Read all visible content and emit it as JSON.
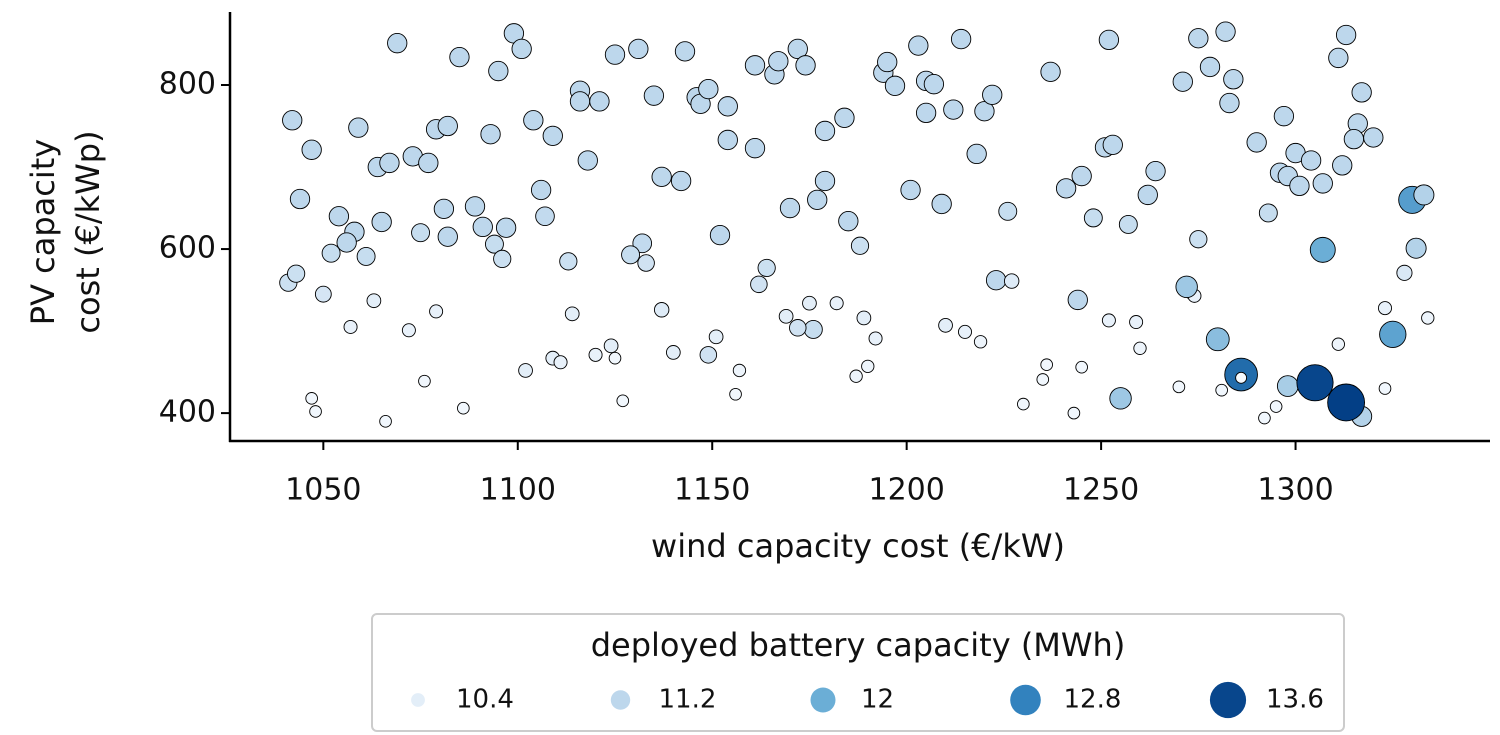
{
  "chart_data": {
    "type": "scatter",
    "xlabel": "wind capacity cost (€/kW)",
    "ylabel": [
      "PV capacity",
      "cost (€/kWp)"
    ],
    "xlim": [
      1026,
      1350
    ],
    "ylim": [
      366,
      889
    ],
    "xticks": [
      1050,
      1100,
      1150,
      1200,
      1250,
      1300
    ],
    "yticks": [
      400,
      600,
      800
    ],
    "grid": false,
    "x": [
      1042,
      1047,
      1044,
      1054,
      1058,
      1056,
      1052,
      1061,
      1041,
      1043,
      1050,
      1069,
      1059,
      1064,
      1067,
      1073,
      1077,
      1065,
      1075,
      1079,
      1082,
      1081,
      1082,
      1085,
      1093,
      1095,
      1089,
      1091,
      1094,
      1097,
      1096,
      1099,
      1101,
      1104,
      1109,
      1106,
      1107,
      1113,
      1116,
      1116,
      1121,
      1118,
      1125,
      1131,
      1135,
      1143,
      1137,
      1142,
      1132,
      1129,
      1133,
      1146,
      1147,
      1149,
      1154,
      1154,
      1161,
      1152,
      1161,
      1166,
      1167,
      1172,
      1174,
      1164,
      1162,
      1170,
      1179,
      1184,
      1179,
      1177,
      1185,
      1188,
      1176,
      1194,
      1195,
      1197,
      1203,
      1205,
      1207,
      1205,
      1201,
      1209,
      1214,
      1212,
      1220,
      1222,
      1218,
      1226,
      1223,
      1237,
      1241,
      1245,
      1248,
      1244,
      1251,
      1253,
      1252,
      1257,
      1262,
      1264,
      1271,
      1275,
      1282,
      1278,
      1284,
      1283,
      1275,
      1290,
      1293,
      1297,
      1296,
      1298,
      1300,
      1301,
      1304,
      1307,
      1311,
      1312,
      1313,
      1316,
      1315,
      1317,
      1320,
      1047,
      1048,
      1066,
      1076,
      1086,
      1057,
      1063,
      1072,
      1079,
      1102,
      1109,
      1111,
      1114,
      1120,
      1124,
      1125,
      1127,
      1137,
      1140,
      1149,
      1151,
      1157,
      1156,
      1169,
      1172,
      1175,
      1182,
      1187,
      1189,
      1190,
      1192,
      1210,
      1215,
      1219,
      1227,
      1230,
      1235,
      1236,
      1243,
      1245,
      1252,
      1259,
      1260,
      1270,
      1273,
      1274,
      1281,
      1292,
      1295,
      1311,
      1323,
      1330,
      1333,
      1331,
      1328,
      1323,
      1334,
      1325,
      1307,
      1280,
      1272,
      1255,
      1298,
      1317,
      1286,
      1286,
      1305,
      1313
    ],
    "y": [
      757,
      721,
      661,
      640,
      621,
      608,
      595,
      591,
      559,
      570,
      545,
      851,
      748,
      700,
      705,
      713,
      705,
      633,
      620,
      746,
      750,
      649,
      615,
      834,
      740,
      817,
      652,
      627,
      606,
      626,
      588,
      863,
      844,
      757,
      738,
      672,
      640,
      585,
      793,
      780,
      780,
      708,
      837,
      844,
      787,
      841,
      688,
      683,
      607,
      593,
      583,
      785,
      777,
      795,
      733,
      774,
      723,
      617,
      824,
      813,
      829,
      844,
      824,
      577,
      557,
      650,
      744,
      760,
      683,
      660,
      634,
      604,
      502,
      815,
      828,
      799,
      848,
      805,
      801,
      766,
      672,
      655,
      856,
      770,
      768,
      788,
      716,
      646,
      562,
      816,
      674,
      689,
      638,
      538,
      724,
      727,
      855,
      630,
      666,
      695,
      804,
      857,
      865,
      822,
      807,
      778,
      612,
      730,
      644,
      762,
      693,
      689,
      717,
      677,
      708,
      680,
      833,
      702,
      861,
      753,
      734,
      791,
      736,
      418,
      402,
      390,
      439,
      406,
      505,
      537,
      501,
      524,
      452,
      467,
      462,
      521,
      471,
      482,
      467,
      415,
      526,
      474,
      471,
      493,
      452,
      423,
      518,
      504,
      534,
      534,
      445,
      516,
      457,
      491,
      507,
      499,
      487,
      561,
      411,
      441,
      459,
      400,
      456,
      513,
      511,
      479,
      432,
      548,
      543,
      428,
      394,
      408,
      484,
      430,
      660,
      666,
      601,
      571,
      528,
      516,
      496,
      599,
      490,
      554,
      418,
      433,
      396,
      447,
      443,
      437,
      413
    ],
    "values": [
      11.2,
      11.2,
      11.2,
      11.2,
      11.2,
      11.2,
      11.0,
      11.0,
      10.9,
      10.9,
      10.7,
      11.2,
      11.2,
      11.2,
      11.2,
      11.2,
      11.2,
      11.2,
      11.0,
      11.2,
      11.2,
      11.2,
      11.2,
      11.2,
      11.2,
      11.2,
      11.2,
      11.2,
      11.0,
      11.2,
      10.9,
      11.2,
      11.2,
      11.2,
      11.2,
      11.2,
      11.1,
      10.9,
      11.2,
      11.2,
      11.2,
      11.2,
      11.2,
      11.2,
      11.2,
      11.2,
      11.2,
      11.2,
      11.1,
      11.0,
      10.8,
      11.2,
      11.2,
      11.2,
      11.2,
      11.2,
      11.2,
      11.2,
      11.2,
      11.2,
      11.2,
      11.2,
      11.2,
      10.9,
      10.8,
      11.2,
      11.2,
      11.2,
      11.2,
      11.2,
      11.2,
      10.9,
      11.0,
      11.2,
      11.2,
      11.2,
      11.2,
      11.2,
      11.2,
      11.2,
      11.2,
      11.2,
      11.2,
      11.2,
      11.2,
      11.2,
      11.2,
      11.0,
      11.2,
      11.2,
      11.2,
      11.2,
      11.0,
      11.2,
      11.2,
      11.2,
      11.2,
      11.0,
      11.2,
      11.2,
      11.2,
      11.2,
      11.2,
      11.2,
      11.2,
      11.2,
      10.9,
      11.2,
      11.0,
      11.2,
      11.2,
      11.2,
      11.2,
      11.2,
      11.2,
      11.2,
      11.2,
      11.2,
      11.2,
      11.2,
      11.2,
      11.2,
      11.2,
      10.1,
      10.1,
      10.1,
      10.1,
      10.1,
      10.3,
      10.4,
      10.3,
      10.3,
      10.4,
      10.4,
      10.3,
      10.4,
      10.3,
      10.4,
      10.1,
      10.1,
      10.5,
      10.4,
      10.8,
      10.4,
      10.2,
      10.1,
      10.4,
      10.8,
      10.4,
      10.3,
      10.2,
      10.4,
      10.2,
      10.3,
      10.4,
      10.3,
      10.2,
      10.5,
      10.1,
      10.1,
      10.1,
      10.1,
      10.1,
      10.3,
      10.3,
      10.2,
      10.1,
      10.4,
      10.3,
      10.1,
      10.1,
      10.1,
      10.2,
      10.1,
      12.3,
      11.3,
      11.3,
      10.6,
      10.3,
      10.2,
      12.2,
      12.0,
      11.7,
      11.5,
      11.5,
      11.4,
      11.3,
      13.1,
      10.0,
      13.6,
      13.7
    ],
    "marker_edge_color": "#000000",
    "size_legend": {
      "title": "deployed battery capacity (MWh)",
      "values": [
        10.4,
        11.2,
        12.0,
        12.8,
        13.6
      ],
      "colors": [
        "#e3eef8",
        "#bdd7ec",
        "#6baed6",
        "#3282be",
        "#08468c"
      ]
    }
  }
}
